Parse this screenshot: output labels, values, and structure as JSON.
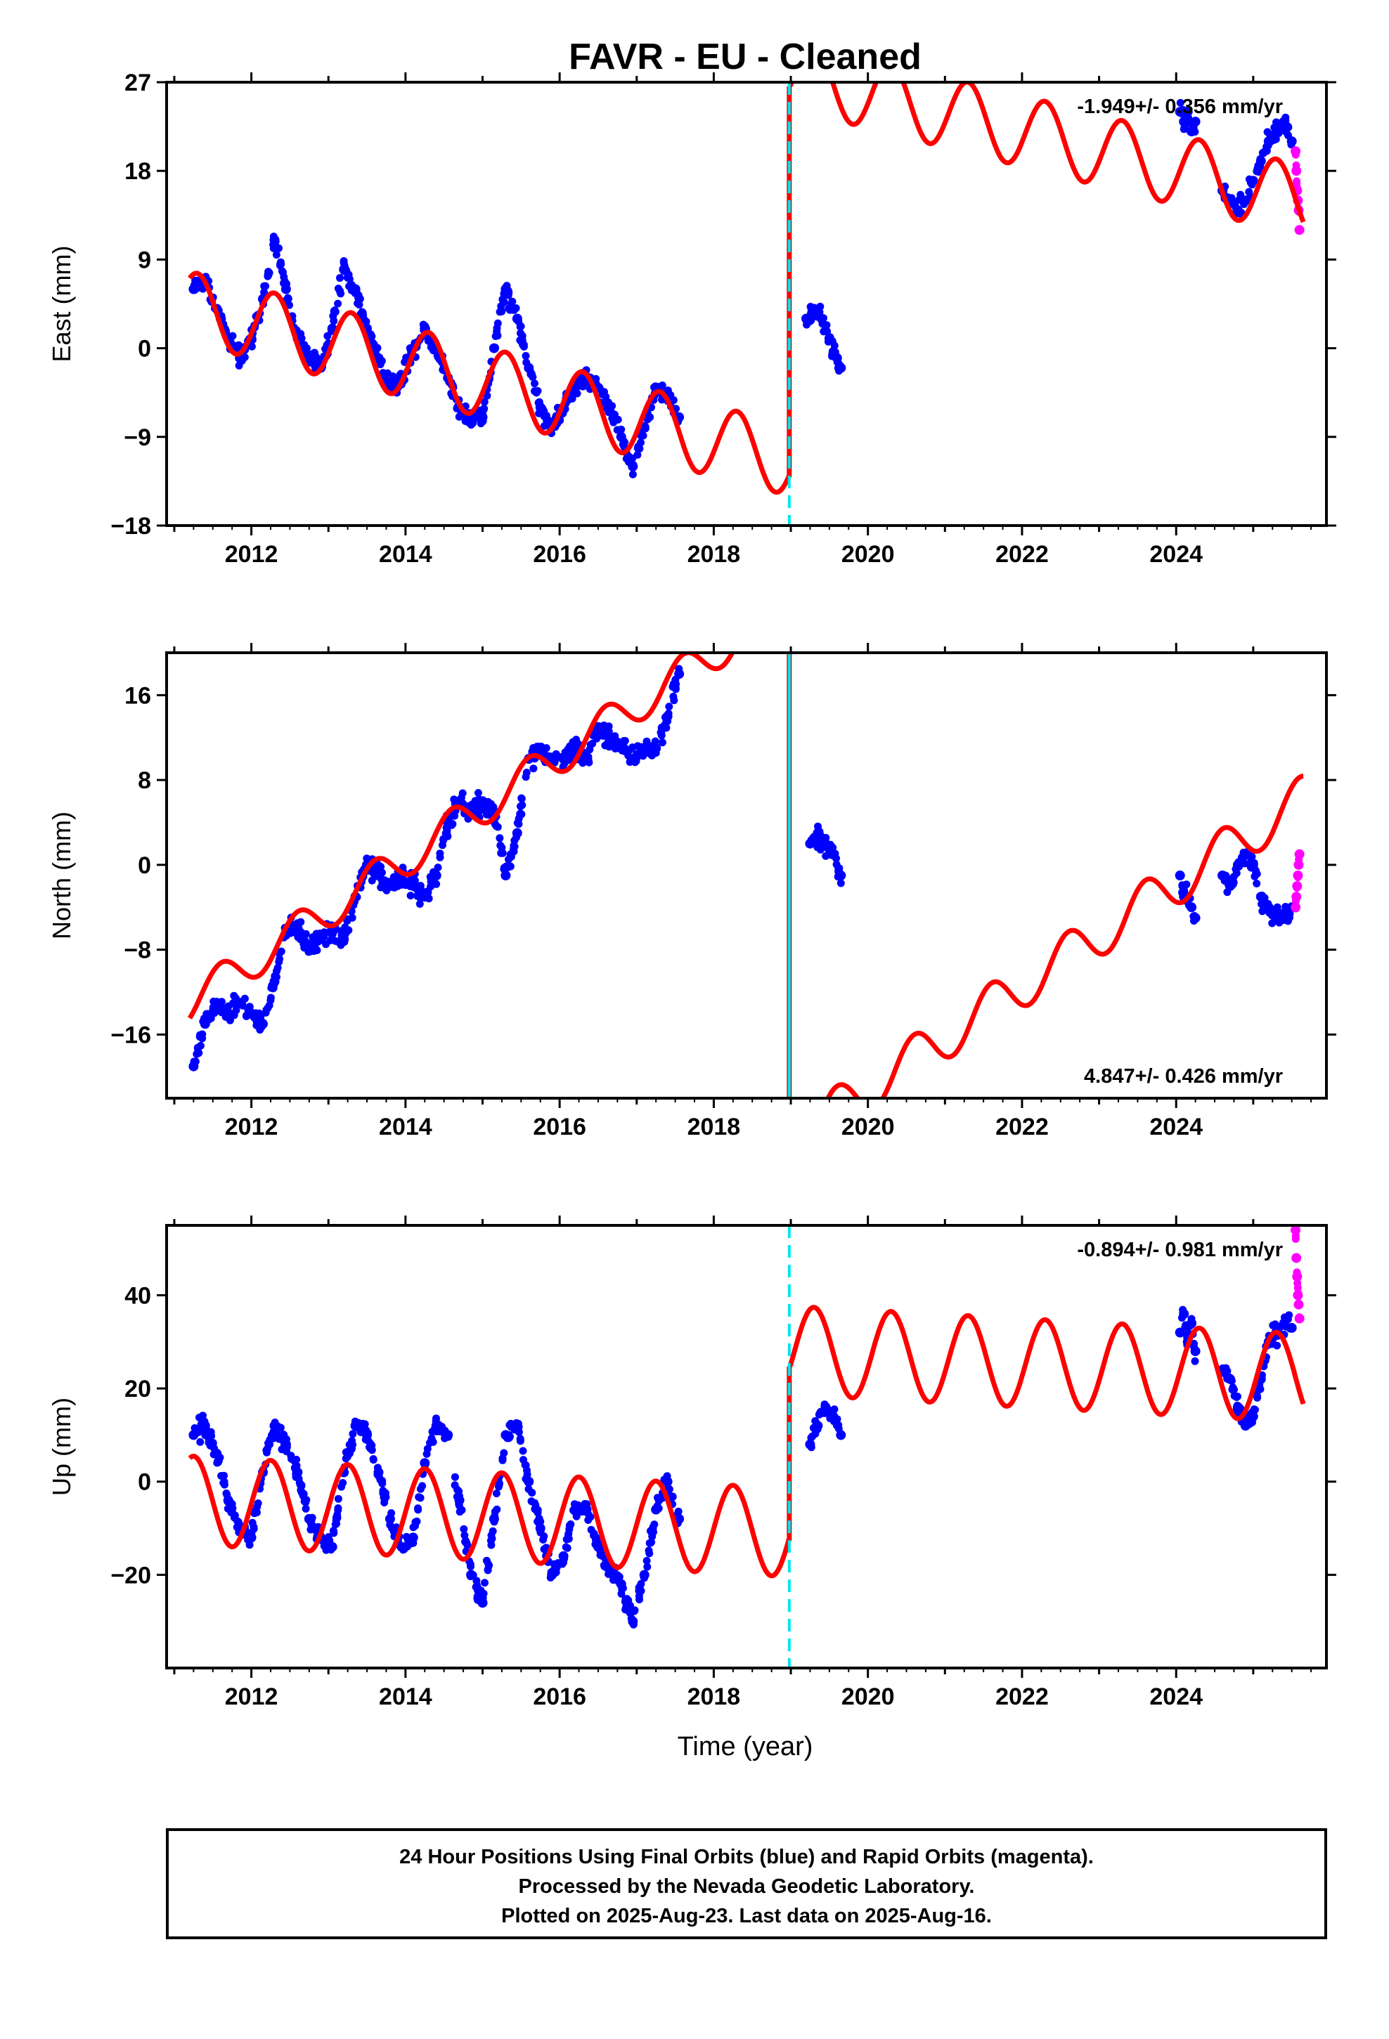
{
  "title": "FAVR  - EU - Cleaned",
  "colors": {
    "final_orbits": "#0000ff",
    "rapid_orbits": "#ff00ff",
    "model": "#ff0000",
    "offset_marker": "#00e5ee"
  },
  "xlabel": "Time (year)",
  "footer": {
    "line1": "24 Hour Positions Using Final Orbits (blue) and Rapid Orbits (magenta).",
    "line2": "Processed by the Nevada Geodetic Laboratory.",
    "line3": "Plotted on 2025-Aug-23. Last data on 2025-Aug-16."
  },
  "chart_data": [
    {
      "type": "scatter",
      "component": "east",
      "ylabel": "East (mm)",
      "rate_label": "-1.949+/- 0.356 mm/yr",
      "rate_position": "top-right",
      "xlim": [
        2010.9,
        2025.95
      ],
      "ylim": [
        -18,
        27
      ],
      "xticks": [
        2012,
        2014,
        2016,
        2018,
        2020,
        2022,
        2024
      ],
      "yticks": [
        -18,
        -9,
        0,
        9,
        18,
        27
      ],
      "offset_year": 2018.98,
      "offset_line_style": "dashed",
      "series": [
        {
          "name": "Final Orbits (blue)",
          "segments": [
            {
              "x": [
                2011.25,
                2011.4,
                2011.55,
                2011.7,
                2011.85,
                2012.0,
                2012.15,
                2012.3,
                2012.45,
                2012.6,
                2012.75,
                2012.9,
                2013.05,
                2013.2,
                2013.35,
                2013.5,
                2013.65,
                2013.8,
                2013.95,
                2014.1,
                2014.25,
                2014.4,
                2014.55,
                2014.7,
                2014.85,
                2015.0,
                2015.15,
                2015.3,
                2015.45,
                2015.6,
                2015.75,
                2015.9,
                2016.05,
                2016.2,
                2016.35,
                2016.5,
                2016.65,
                2016.8,
                2016.95,
                2017.1,
                2017.25,
                2017.4,
                2017.55
              ],
              "y": [
                6,
                7,
                4,
                1,
                -1,
                1,
                5,
                11,
                6,
                1,
                -1,
                -2,
                2,
                8,
                6,
                2,
                -1,
                -4,
                -3,
                0,
                2,
                0,
                -3,
                -6,
                -7,
                -7,
                0,
                6,
                3,
                -2,
                -6,
                -8,
                -6,
                -4,
                -3,
                -4,
                -6,
                -9,
                -12,
                -8,
                -4,
                -5,
                -7
              ]
            },
            {
              "x": [
                2019.2,
                2019.3,
                2019.4,
                2019.5,
                2019.6,
                2019.65
              ],
              "y": [
                3,
                4,
                3,
                1,
                -1,
                -2
              ]
            },
            {
              "x": [
                2024.05,
                2024.1,
                2024.15,
                2024.2,
                2024.25
              ],
              "y": [
                24,
                23,
                24,
                22,
                23
              ]
            },
            {
              "x": [
                2024.6,
                2024.7,
                2024.8,
                2024.9,
                2025.0,
                2025.1,
                2025.2,
                2025.3,
                2025.4,
                2025.5
              ],
              "y": [
                16,
                15,
                14,
                15,
                17,
                19,
                21,
                22,
                23,
                21
              ]
            }
          ]
        },
        {
          "name": "Rapid Orbits (magenta)",
          "segments": [
            {
              "x": [
                2025.55,
                2025.56,
                2025.57,
                2025.58,
                2025.59,
                2025.6
              ],
              "y": [
                20,
                18,
                16,
                15,
                14,
                12
              ]
            }
          ]
        }
      ]
    },
    {
      "type": "scatter",
      "component": "north",
      "ylabel": "North (mm)",
      "rate_label": "4.847+/- 0.426 mm/yr",
      "rate_position": "bottom-right",
      "xlim": [
        2010.9,
        2025.95
      ],
      "ylim": [
        -22,
        20
      ],
      "xticks": [
        2012,
        2014,
        2016,
        2018,
        2020,
        2022,
        2024
      ],
      "yticks": [
        -16,
        -8,
        0,
        8,
        16
      ],
      "offset_year": 2018.98,
      "offset_line_style": "solid",
      "series": [
        {
          "name": "Final Orbits (blue)",
          "segments": [
            {
              "x": [
                2011.25,
                2011.4,
                2011.55,
                2011.7,
                2011.85,
                2012.0,
                2012.15,
                2012.3,
                2012.45,
                2012.6,
                2012.75,
                2012.9,
                2013.05,
                2013.2,
                2013.35,
                2013.5,
                2013.65,
                2013.8,
                2013.95,
                2014.1,
                2014.25,
                2014.4,
                2014.55,
                2014.7,
                2014.85,
                2015.0,
                2015.15,
                2015.3,
                2015.45,
                2015.6,
                2015.75,
                2015.9,
                2016.05,
                2016.2,
                2016.35,
                2016.5,
                2016.65,
                2016.8,
                2016.95,
                2017.1,
                2017.25,
                2017.4,
                2017.55
              ],
              "y": [
                -19,
                -15,
                -13,
                -14,
                -13,
                -14,
                -15,
                -11,
                -6,
                -6,
                -8,
                -7,
                -6,
                -7,
                -3,
                0,
                -1,
                -2,
                -1,
                -2,
                -3,
                -1,
                4,
                6,
                5,
                6,
                5,
                -1,
                3,
                10,
                11,
                10,
                10,
                11,
                10,
                13,
                12,
                11,
                10,
                11,
                11,
                14,
                18
              ]
            },
            {
              "x": [
                2019.25,
                2019.35,
                2019.45,
                2019.55,
                2019.65
              ],
              "y": [
                2,
                3,
                2,
                1,
                -1
              ]
            },
            {
              "x": [
                2024.05,
                2024.1,
                2024.15,
                2024.2,
                2024.25
              ],
              "y": [
                -1,
                -3,
                -3,
                -4,
                -5
              ]
            },
            {
              "x": [
                2024.6,
                2024.7,
                2024.8,
                2024.9,
                2025.0,
                2025.1,
                2025.2,
                2025.3,
                2025.4,
                2025.5
              ],
              "y": [
                -1,
                -2,
                0,
                1,
                0,
                -3,
                -4,
                -5,
                -5,
                -4
              ]
            }
          ]
        },
        {
          "name": "Rapid Orbits (magenta)",
          "segments": [
            {
              "x": [
                2025.55,
                2025.56,
                2025.57,
                2025.58,
                2025.59,
                2025.6
              ],
              "y": [
                -4,
                -3,
                -2,
                -1,
                0,
                1
              ]
            }
          ]
        }
      ]
    },
    {
      "type": "scatter",
      "component": "up",
      "ylabel": "Up (mm)",
      "rate_label": "-0.894+/- 0.981 mm/yr",
      "rate_position": "top-right",
      "xlim": [
        2010.9,
        2025.95
      ],
      "ylim": [
        -40,
        55
      ],
      "xticks": [
        2012,
        2014,
        2016,
        2018,
        2020,
        2022,
        2024
      ],
      "yticks": [
        -20,
        0,
        20,
        40
      ],
      "offset_year": 2018.98,
      "offset_line_style": "dashed",
      "series": [
        {
          "name": "Final Orbits (blue)",
          "segments": [
            {
              "x": [
                2011.25,
                2011.4,
                2011.55,
                2011.7,
                2011.85,
                2012.0,
                2012.15,
                2012.3,
                2012.45,
                2012.6,
                2012.75,
                2012.9,
                2013.05,
                2013.2,
                2013.35,
                2013.5,
                2013.65,
                2013.8,
                2013.95,
                2014.1,
                2014.25,
                2014.4,
                2014.55,
                2014.7,
                2014.85,
                2015.0,
                2015.15,
                2015.3,
                2015.45,
                2015.6,
                2015.75,
                2015.9,
                2016.05,
                2016.2,
                2016.35,
                2016.5,
                2016.65,
                2016.8,
                2016.95,
                2017.1,
                2017.25,
                2017.4,
                2017.55
              ],
              "y": [
                10,
                12,
                6,
                -4,
                -10,
                -12,
                2,
                12,
                8,
                2,
                -8,
                -12,
                -14,
                2,
                12,
                10,
                2,
                -8,
                -14,
                -12,
                4,
                12,
                10,
                -4,
                -20,
                -26,
                -8,
                10,
                12,
                0,
                -10,
                -20,
                -16,
                -6,
                -6,
                -14,
                -18,
                -22,
                -30,
                -20,
                -6,
                0,
                -8
              ]
            },
            {
              "x": [
                2019.25,
                2019.35,
                2019.45,
                2019.55,
                2019.65
              ],
              "y": [
                8,
                12,
                16,
                14,
                10
              ]
            },
            {
              "x": [
                2024.05,
                2024.1,
                2024.15,
                2024.2,
                2024.25
              ],
              "y": [
                32,
                36,
                30,
                34,
                28
              ]
            },
            {
              "x": [
                2024.6,
                2024.7,
                2024.8,
                2024.9,
                2025.0,
                2025.1,
                2025.2,
                2025.3,
                2025.4,
                2025.5
              ],
              "y": [
                24,
                22,
                16,
                12,
                14,
                22,
                30,
                32,
                34,
                33
              ]
            }
          ]
        },
        {
          "name": "Rapid Orbits (magenta)",
          "segments": [
            {
              "x": [
                2025.55,
                2025.56,
                2025.57,
                2025.58,
                2025.59,
                2025.6
              ],
              "y": [
                54,
                48,
                44,
                40,
                38,
                35
              ]
            }
          ]
        }
      ]
    }
  ]
}
